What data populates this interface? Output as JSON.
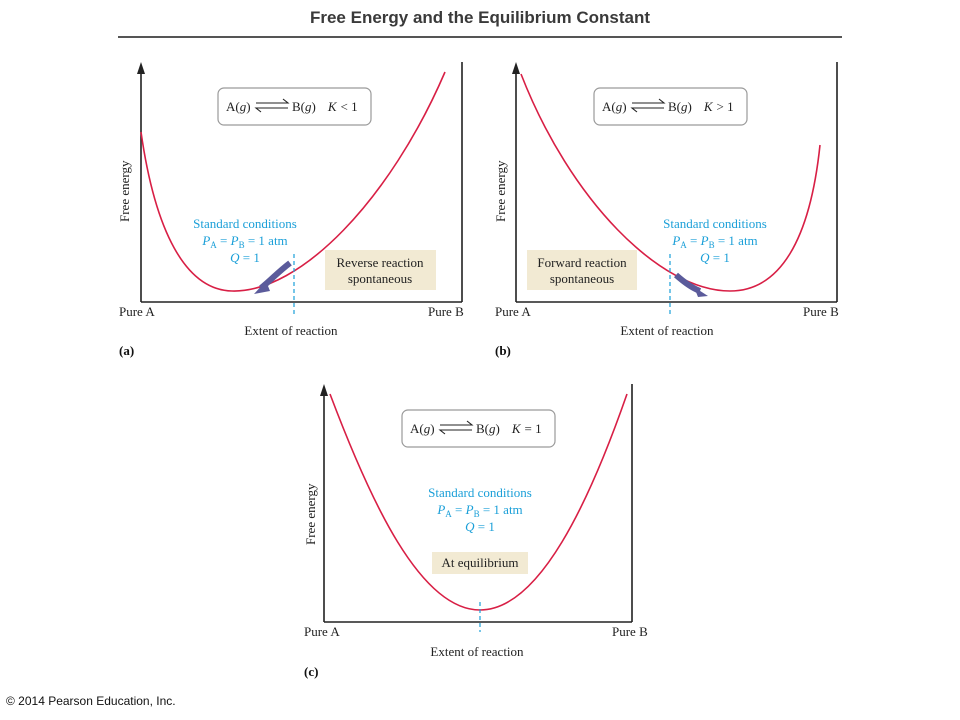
{
  "title": "Free Energy and the Equilibrium Constant",
  "copyright": "© 2014 Pearson Education, Inc.",
  "colors": {
    "curve": "#d81f45",
    "dashed": "#1a9fd8",
    "text_blue": "#1a9fd8",
    "arrow": "#5b5b9b",
    "box_fill": "#f2ead3"
  },
  "panels": [
    {
      "letter": "(a)",
      "equation": {
        "left": "A(",
        "g1": "g",
        "mid": ")",
        "right_b": "B(",
        "g2": "g",
        "close": ")",
        "k": "K",
        "rel": "< 1"
      },
      "y_label": "Free energy",
      "x_label": "Extent of reaction",
      "x_left": "Pure A",
      "x_right": "Pure B",
      "std": {
        "line1": "Standard conditions",
        "pa": "P",
        "pa_sub": "A",
        "eq": " = ",
        "pb": "P",
        "pb_sub": "B",
        "atm": " = 1 atm",
        "q": "Q",
        "q_eq": " = 1"
      },
      "box": {
        "line1": "Reverse reaction",
        "line2": "spontaneous"
      }
    },
    {
      "letter": "(b)",
      "equation": {
        "left": "A(",
        "g1": "g",
        "mid": ")",
        "right_b": "B(",
        "g2": "g",
        "close": ")",
        "k": "K",
        "rel": "> 1"
      },
      "y_label": "Free energy",
      "x_label": "Extent of reaction",
      "x_left": "Pure A",
      "x_right": "Pure B",
      "std": {
        "line1": "Standard conditions",
        "pa": "P",
        "pa_sub": "A",
        "eq": " = ",
        "pb": "P",
        "pb_sub": "B",
        "atm": " = 1 atm",
        "q": "Q",
        "q_eq": " = 1"
      },
      "box": {
        "line1": "Forward reaction",
        "line2": "spontaneous"
      }
    },
    {
      "letter": "(c)",
      "equation": {
        "left": "A(",
        "g1": "g",
        "mid": ")",
        "right_b": "B(",
        "g2": "g",
        "close": ")",
        "k": "K",
        "rel": "= 1"
      },
      "y_label": "Free energy",
      "x_label": "Extent of reaction",
      "x_left": "Pure A",
      "x_right": "Pure B",
      "std": {
        "line1": "Standard conditions",
        "pa": "P",
        "pa_sub": "A",
        "eq": " = ",
        "pb": "P",
        "pb_sub": "B",
        "atm": " = 1 atm",
        "q": "Q",
        "q_eq": " = 1"
      },
      "box": {
        "line1": "At equilibrium"
      }
    }
  ]
}
